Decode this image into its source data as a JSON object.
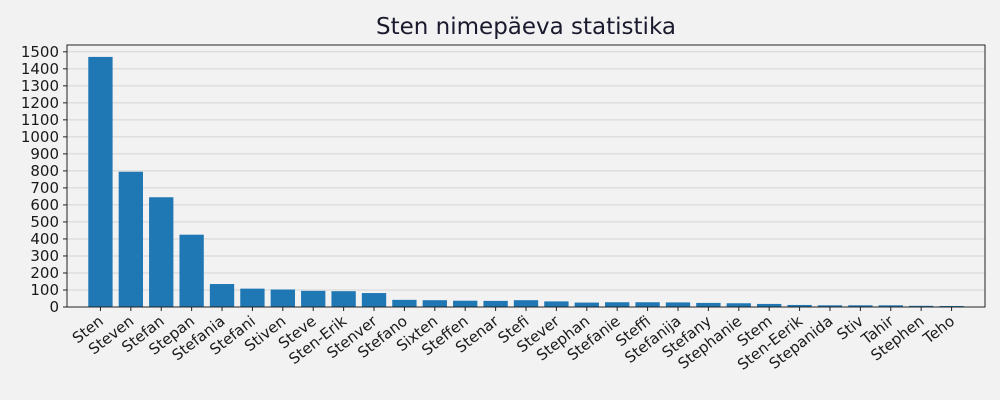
{
  "chart_data": {
    "type": "bar",
    "title": "Sten nimepäeva statistika",
    "xlabel": "",
    "ylabel": "",
    "ylim": [
      0,
      1540
    ],
    "yticks": [
      0,
      100,
      200,
      300,
      400,
      500,
      600,
      700,
      800,
      900,
      1000,
      1100,
      1200,
      1300,
      1400,
      1500
    ],
    "grid": "horizontal",
    "bar_color": "#1f77b4",
    "background": "#f2f2f2",
    "categories": [
      "Sten",
      "Steven",
      "Stefan",
      "Stepan",
      "Stefania",
      "Stefani",
      "Stiven",
      "Steve",
      "Sten-Erik",
      "Stenver",
      "Stefano",
      "Sixten",
      "Steffen",
      "Stenar",
      "Stefi",
      "Stever",
      "Stephan",
      "Stefanie",
      "Steffi",
      "Stefanija",
      "Stefany",
      "Stephanie",
      "Stem",
      "Sten-Eerik",
      "Stepanida",
      "Stiv",
      "Tahir",
      "Stephen",
      "Teho"
    ],
    "values": [
      1470,
      795,
      645,
      425,
      135,
      108,
      103,
      95,
      93,
      82,
      42,
      40,
      37,
      36,
      40,
      33,
      26,
      28,
      28,
      27,
      24,
      22,
      18,
      12,
      10,
      10,
      10,
      7,
      6
    ]
  }
}
